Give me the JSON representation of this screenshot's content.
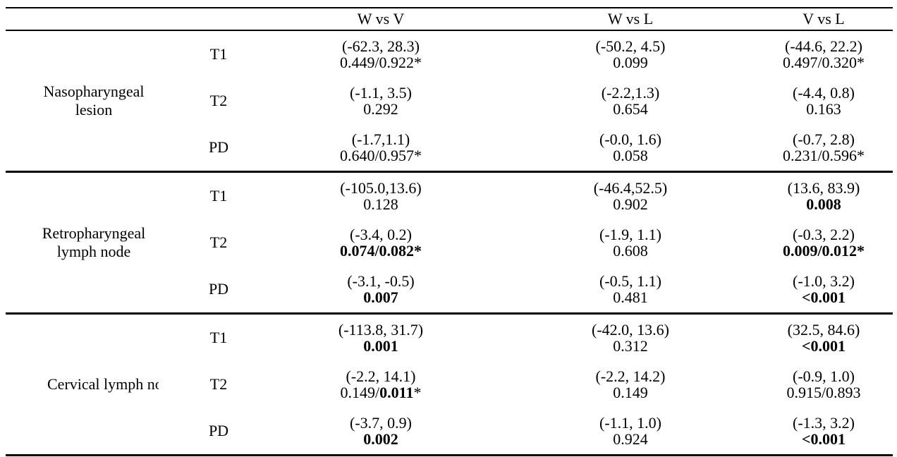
{
  "table": {
    "columns": [
      "",
      "",
      "W vs V",
      "W vs L",
      "V vs L"
    ],
    "groups": [
      {
        "label_lines": [
          "Nasopharyngeal",
          "lesion"
        ],
        "clipped": false,
        "rows": [
          {
            "sub": "T1",
            "cells": [
              {
                "ci": "(-62.3, 28.3)",
                "p": [
                  {
                    "text": "0.449/0.922*",
                    "bold": false
                  }
                ]
              },
              {
                "ci": "(-50.2, 4.5)",
                "p": [
                  {
                    "text": "0.099",
                    "bold": false
                  }
                ]
              },
              {
                "ci": "(-44.6, 22.2)",
                "p": [
                  {
                    "text": "0.497/0.320*",
                    "bold": false
                  }
                ]
              }
            ]
          },
          {
            "sub": "T2",
            "cells": [
              {
                "ci": "(-1.1, 3.5)",
                "p": [
                  {
                    "text": "0.292",
                    "bold": false
                  }
                ]
              },
              {
                "ci": "(-2.2,1.3)",
                "p": [
                  {
                    "text": "0.654",
                    "bold": false
                  }
                ]
              },
              {
                "ci": "(-4.4, 0.8)",
                "p": [
                  {
                    "text": "0.163",
                    "bold": false
                  }
                ]
              }
            ]
          },
          {
            "sub": "PD",
            "cells": [
              {
                "ci": "(-1.7,1.1)",
                "p": [
                  {
                    "text": "0.640/0.957*",
                    "bold": false
                  }
                ]
              },
              {
                "ci": "(-0.0, 1.6)",
                "p": [
                  {
                    "text": "0.058",
                    "bold": false
                  }
                ]
              },
              {
                "ci": "(-0.7, 2.8)",
                "p": [
                  {
                    "text": "0.231/0.596*",
                    "bold": false
                  }
                ]
              }
            ]
          }
        ]
      },
      {
        "label_lines": [
          "Retropharyngeal",
          "lymph node"
        ],
        "clipped": false,
        "rows": [
          {
            "sub": "T1",
            "cells": [
              {
                "ci": "(-105.0,13.6)",
                "p": [
                  {
                    "text": "0.128",
                    "bold": false
                  }
                ]
              },
              {
                "ci": "(-46.4,52.5)",
                "p": [
                  {
                    "text": "0.902",
                    "bold": false
                  }
                ]
              },
              {
                "ci": "(13.6, 83.9)",
                "p": [
                  {
                    "text": "0.008",
                    "bold": true
                  }
                ]
              }
            ]
          },
          {
            "sub": "T2",
            "cells": [
              {
                "ci": "(-3.4, 0.2)",
                "p": [
                  {
                    "text": "0.074/0.082*",
                    "bold": true
                  }
                ]
              },
              {
                "ci": "(-1.9, 1.1)",
                "p": [
                  {
                    "text": "0.608",
                    "bold": false
                  }
                ]
              },
              {
                "ci": "(-0.3, 2.2)",
                "p": [
                  {
                    "text": "0.009/0.012*",
                    "bold": true
                  }
                ]
              }
            ]
          },
          {
            "sub": "PD",
            "cells": [
              {
                "ci": "(-3.1, -0.5)",
                "p": [
                  {
                    "text": "0.007",
                    "bold": true
                  }
                ]
              },
              {
                "ci": "(-0.5, 1.1)",
                "p": [
                  {
                    "text": "0.481",
                    "bold": false
                  }
                ]
              },
              {
                "ci": "(-1.0, 3.2)",
                "p": [
                  {
                    "text": "<0.001",
                    "bold": true
                  }
                ]
              }
            ]
          }
        ]
      },
      {
        "label_lines": [
          "Cervical lymph no"
        ],
        "clipped": true,
        "rows": [
          {
            "sub": "T1",
            "cells": [
              {
                "ci": "(-113.8, 31.7)",
                "p": [
                  {
                    "text": "0.001",
                    "bold": true
                  }
                ]
              },
              {
                "ci": "(-42.0, 13.6)",
                "p": [
                  {
                    "text": "0.312",
                    "bold": false
                  }
                ]
              },
              {
                "ci": "(32.5, 84.6)",
                "p": [
                  {
                    "text": "<0.001",
                    "bold": true
                  }
                ]
              }
            ]
          },
          {
            "sub": "T2",
            "cells": [
              {
                "ci": "(-2.2, 14.1)",
                "p": [
                  {
                    "text": "0.149/",
                    "bold": false
                  },
                  {
                    "text": "0.011",
                    "bold": true
                  },
                  {
                    "text": "*",
                    "bold": false
                  }
                ]
              },
              {
                "ci": "(-2.2, 14.2)",
                "p": [
                  {
                    "text": "0.149",
                    "bold": false
                  }
                ]
              },
              {
                "ci": "(-0.9, 1.0)",
                "p": [
                  {
                    "text": "0.915/0.893",
                    "bold": false
                  }
                ]
              }
            ]
          },
          {
            "sub": "PD",
            "cells": [
              {
                "ci": "(-3.7, 0.9)",
                "p": [
                  {
                    "text": "0.002",
                    "bold": true
                  }
                ]
              },
              {
                "ci": "(-1.1, 1.0)",
                "p": [
                  {
                    "text": "0.924",
                    "bold": false
                  }
                ]
              },
              {
                "ci": "(-1.3, 3.2)",
                "p": [
                  {
                    "text": "<0.001",
                    "bold": true
                  }
                ]
              }
            ]
          }
        ]
      }
    ]
  }
}
